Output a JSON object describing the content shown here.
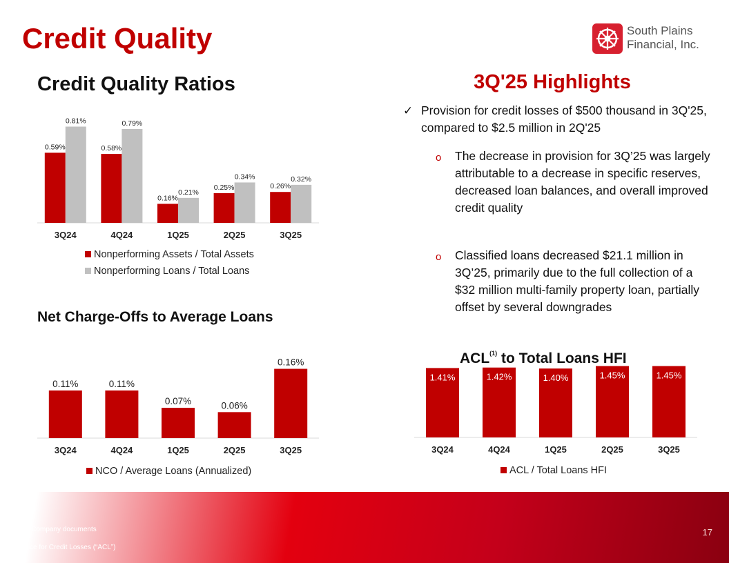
{
  "slide": {
    "title": "Credit Quality",
    "page_number": "17",
    "source_note": "Source: Company documents",
    "acl_note": "Allowance for Credit Losses (“ACL”)"
  },
  "logo": {
    "line1": "South Plains",
    "line2": "Financial, Inc."
  },
  "highlights": {
    "title": "3Q'25 Highlights",
    "main_bullet": "Provision for credit losses of $500 thousand in 3Q'25, compared to $2.5 million in 2Q'25",
    "sub_bullets": [
      "The decrease in provision for 3Q’25 was largely attributable to a decrease in specific reserves, decreased loan balances, and overall improved credit quality",
      "Classified loans decreased $21.1 million in 3Q’25, primarily due to the full collection of a $32 million multi-family property loan, partially offset by several downgrades"
    ]
  },
  "colors": {
    "brand_red": "#c00000",
    "bar_gray": "#c0c0c0"
  },
  "chart_data": [
    {
      "type": "bar",
      "title": "Credit Quality Ratios",
      "categories": [
        "3Q24",
        "4Q24",
        "1Q25",
        "2Q25",
        "3Q25"
      ],
      "series": [
        {
          "name": "Nonperforming Assets / Total Assets",
          "values": [
            0.59,
            0.58,
            0.16,
            0.25,
            0.26
          ],
          "labels": [
            "0.59%",
            "0.58%",
            "0.16%",
            "0.25%",
            "0.26%"
          ],
          "color": "#c00000"
        },
        {
          "name": "Nonperforming Loans / Total Loans",
          "values": [
            0.81,
            0.79,
            0.21,
            0.34,
            0.32
          ],
          "labels": [
            "0.81%",
            "0.79%",
            "0.21%",
            "0.34%",
            "0.32%"
          ],
          "color": "#c0c0c0"
        }
      ],
      "ylim": [
        0,
        0.9
      ],
      "legend": "bottom"
    },
    {
      "type": "bar",
      "title": "Net Charge-Offs to Average Loans",
      "categories": [
        "3Q24",
        "4Q24",
        "1Q25",
        "2Q25",
        "3Q25"
      ],
      "series": [
        {
          "name": "NCO / Average Loans (Annualized)",
          "values": [
            0.11,
            0.11,
            0.07,
            0.06,
            0.16
          ],
          "labels": [
            "0.11%",
            "0.11%",
            "0.07%",
            "0.06%",
            "0.16%"
          ],
          "color": "#c00000"
        }
      ],
      "ylim": [
        0,
        0.18
      ],
      "legend": "bottom"
    },
    {
      "type": "bar",
      "title_main": "ACL",
      "title_superscript": "(1)",
      "title_rest": " to Total Loans HFI",
      "categories": [
        "3Q24",
        "4Q24",
        "1Q25",
        "2Q25",
        "3Q25"
      ],
      "series": [
        {
          "name": "ACL / Total Loans HFI",
          "values": [
            1.41,
            1.42,
            1.4,
            1.45,
            1.45
          ],
          "labels": [
            "1.41%",
            "1.42%",
            "1.40%",
            "1.45%",
            "1.45%"
          ],
          "color": "#c00000"
        }
      ],
      "ylim": [
        0,
        1.5
      ],
      "label_position": "inside-top",
      "legend": "bottom"
    }
  ]
}
